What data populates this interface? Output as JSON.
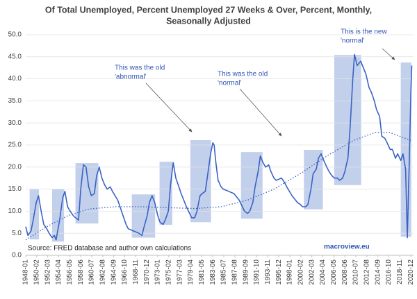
{
  "chart_data": {
    "type": "line",
    "title": [
      "Of Total Unemployed, Percent Unemployed 27 Weeks & Over, Percent, Monthly,",
      "Seasonally Adjusted"
    ],
    "xlim": [
      "1948-01",
      "2021-06"
    ],
    "ylim": [
      0,
      50
    ],
    "yticks": [
      {
        "value": 0,
        "label": "0.0"
      },
      {
        "value": 5,
        "label": "5.0"
      },
      {
        "value": 10,
        "label": "10.0"
      },
      {
        "value": 15,
        "label": "15.0"
      },
      {
        "value": 20,
        "label": "20.0"
      },
      {
        "value": 25,
        "label": "25.0"
      },
      {
        "value": 30,
        "label": "30.0"
      },
      {
        "value": 35,
        "label": "35.0"
      },
      {
        "value": 40,
        "label": "40.0"
      },
      {
        "value": 45,
        "label": "45.0"
      },
      {
        "value": 50,
        "label": "50.0"
      }
    ],
    "xticks": [
      "1948-01",
      "1950-02",
      "1952-03",
      "1954-04",
      "1956-05",
      "1958-06",
      "1960-07",
      "1962-08",
      "1964-09",
      "1966-10",
      "1968-11",
      "1970-12",
      "1973-01",
      "1975-02",
      "1977-03",
      "1979-04",
      "1981-05",
      "1983-06",
      "1985-07",
      "1987-08",
      "1989-09",
      "1991-10",
      "1993-11",
      "1995-12",
      "1998-01",
      "2000-02",
      "2002-03",
      "2004-04",
      "2006-05",
      "2008-06",
      "2010-07",
      "2012-08",
      "2014-09",
      "2016-10",
      "2018-11",
      "2020-12"
    ],
    "grid": true,
    "series": [
      {
        "color": "#3a62c4",
        "x": [
          "1948-01",
          "1948-06",
          "1949-01",
          "1949-06",
          "1950-01",
          "1950-06",
          "1950-12",
          "1951-06",
          "1952-01",
          "1952-06",
          "1953-01",
          "1953-06",
          "1953-10",
          "1954-06",
          "1955-01",
          "1955-06",
          "1955-12",
          "1956-06",
          "1957-01",
          "1957-06",
          "1958-01",
          "1958-06",
          "1958-12",
          "1959-06",
          "1959-12",
          "1960-06",
          "1961-01",
          "1961-06",
          "1961-12",
          "1962-06",
          "1962-12",
          "1963-06",
          "1964-01",
          "1964-06",
          "1965-06",
          "1966-06",
          "1967-01",
          "1967-06",
          "1968-06",
          "1969-06",
          "1970-01",
          "1970-06",
          "1971-01",
          "1971-06",
          "1971-12",
          "1972-06",
          "1973-01",
          "1973-06",
          "1974-01",
          "1974-06",
          "1975-01",
          "1975-06",
          "1975-12",
          "1976-06",
          "1977-01",
          "1977-06",
          "1978-06",
          "1979-06",
          "1980-01",
          "1980-06",
          "1981-01",
          "1981-06",
          "1982-01",
          "1982-06",
          "1983-01",
          "1983-06",
          "1983-09",
          "1984-01",
          "1984-06",
          "1985-01",
          "1985-06",
          "1986-06",
          "1987-06",
          "1988-06",
          "1989-06",
          "1990-01",
          "1990-06",
          "1991-01",
          "1991-06",
          "1992-01",
          "1992-06",
          "1992-12",
          "1993-06",
          "1994-01",
          "1994-06",
          "1995-01",
          "1995-06",
          "1996-06",
          "1997-01",
          "1997-06",
          "1998-06",
          "1999-06",
          "2000-01",
          "2000-06",
          "2001-01",
          "2001-06",
          "2002-01",
          "2002-06",
          "2003-01",
          "2003-06",
          "2003-12",
          "2004-06",
          "2005-01",
          "2005-06",
          "2006-01",
          "2006-06",
          "2007-01",
          "2007-06",
          "2008-01",
          "2008-06",
          "2009-01",
          "2009-06",
          "2009-12",
          "2010-04",
          "2010-10",
          "2011-06",
          "2011-12",
          "2012-06",
          "2013-01",
          "2013-06",
          "2014-01",
          "2014-06",
          "2015-01",
          "2015-06",
          "2016-01",
          "2016-06",
          "2017-01",
          "2017-06",
          "2018-01",
          "2018-06",
          "2019-01",
          "2019-06",
          "2019-12",
          "2020-04",
          "2020-08",
          "2020-12",
          "2021-02"
        ],
        "values": [
          6.5,
          4.5,
          5.5,
          8,
          12,
          13.5,
          10,
          7,
          6,
          5,
          4,
          4.5,
          3.5,
          8,
          13,
          14.5,
          11,
          10,
          9,
          8.5,
          8,
          15,
          20.5,
          20,
          15.5,
          13.5,
          14,
          18,
          20,
          17.5,
          16,
          15,
          15.5,
          14.5,
          12.5,
          9,
          7,
          6,
          5.5,
          5,
          4.5,
          6.5,
          9,
          12,
          13.5,
          12,
          9,
          7.5,
          7,
          8,
          10,
          16,
          21,
          17.5,
          15.5,
          14,
          11,
          8.5,
          8.5,
          10,
          13.5,
          14,
          14.5,
          18,
          23,
          25.5,
          25,
          21,
          17,
          15.5,
          15,
          14.5,
          14,
          12.5,
          10,
          9.5,
          10,
          12,
          15.5,
          19,
          22.5,
          21,
          20,
          20.5,
          19,
          17.5,
          17,
          17.5,
          16.5,
          15.5,
          13.5,
          12,
          11.5,
          11,
          11,
          11.5,
          15,
          18.5,
          19.5,
          22,
          23,
          21.5,
          20,
          19,
          18,
          17.5,
          17.5,
          17,
          17.5,
          19,
          22,
          29,
          40,
          45.5,
          43,
          44,
          42.5,
          41,
          38,
          37,
          35,
          33,
          31.5,
          27,
          26.5,
          25.5,
          24,
          24,
          22,
          23,
          21.5,
          23,
          19.5,
          4,
          20,
          37,
          43
        ]
      }
    ],
    "trend": {
      "color": "#3a62c4",
      "x": [
        "1948-01",
        "1952-01",
        "1956-01",
        "1960-01",
        "1965-01",
        "1970-01",
        "1975-01",
        "1980-01",
        "1985-01",
        "1990-01",
        "1995-01",
        "2000-01",
        "2005-01",
        "2010-01",
        "2014-01",
        "2017-01",
        "2021-01"
      ],
      "values": [
        3.5,
        6.5,
        9,
        10.5,
        11,
        11,
        10.8,
        10.6,
        11,
        12.5,
        15,
        18.5,
        22.5,
        26,
        27.8,
        27.8,
        26
      ]
    },
    "highlights": {
      "color": "#8faadc",
      "x": [
        [
          "1948-10",
          "1950-07"
        ],
        [
          "1953-01",
          "1955-04"
        ],
        [
          "1957-06",
          "1961-10"
        ],
        [
          "1968-02",
          "1972-07"
        ],
        [
          "1973-05",
          "1975-10"
        ],
        [
          "1979-03",
          "1983-02"
        ],
        [
          "1988-10",
          "1992-11"
        ],
        [
          "2000-09",
          "2004-04"
        ],
        [
          "2006-06",
          "2011-07"
        ],
        [
          "2019-01",
          "2021-01"
        ]
      ],
      "y": [
        [
          3.6,
          15
        ],
        [
          3.1,
          15
        ],
        [
          7.2,
          20.9
        ],
        [
          4,
          13.8
        ],
        [
          6.9,
          21.2
        ],
        [
          7.5,
          26.1
        ],
        [
          8.3,
          23.4
        ],
        [
          10.4,
          23.9
        ],
        [
          15.9,
          45.4
        ],
        [
          4.2,
          43.7
        ]
      ]
    },
    "annotations": [
      [
        "This was the old",
        "'abnormal'"
      ],
      [
        "This was the old",
        "'normal'"
      ],
      [
        "This is the new",
        "'normal'"
      ]
    ],
    "source": "Source: FRED database and author own calculations",
    "website": "macroview.eu"
  }
}
